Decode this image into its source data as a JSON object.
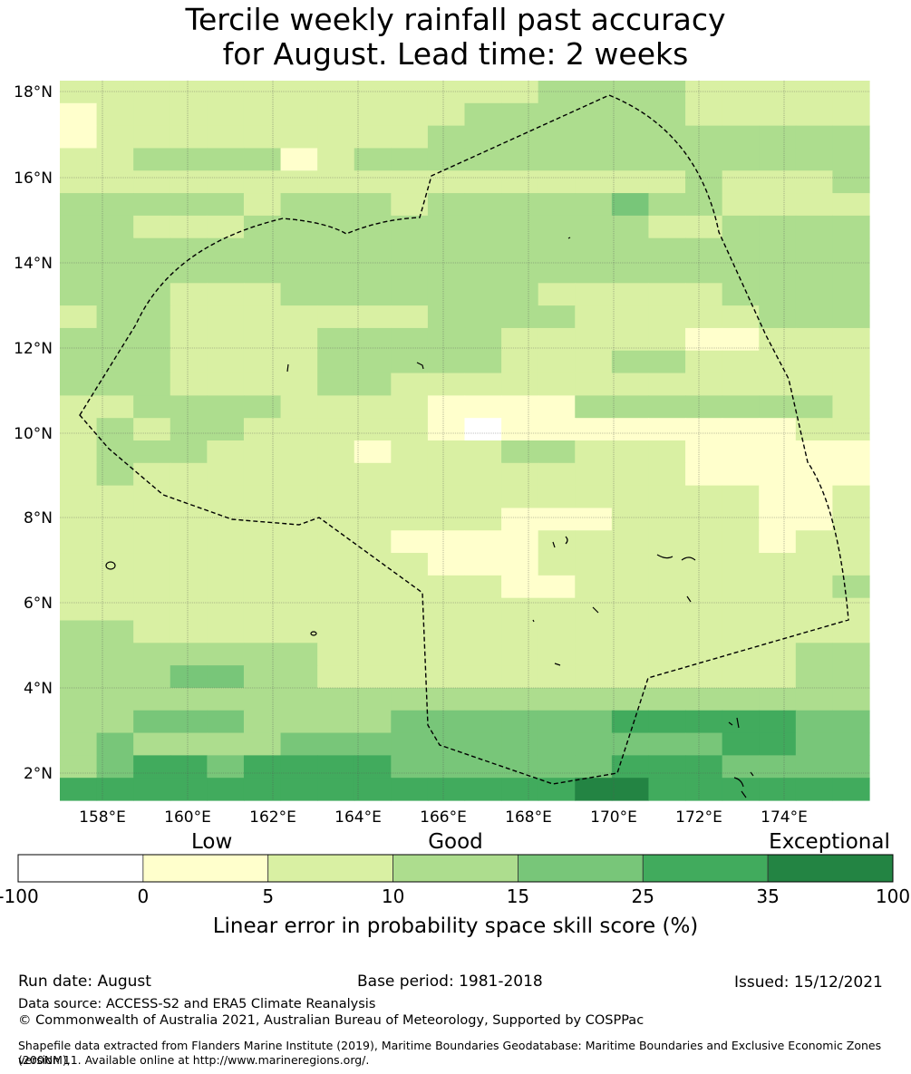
{
  "title_line1": "Tercile weekly rainfall past accuracy",
  "title_line2": "for August. Lead time: 2 weeks",
  "map": {
    "lon_ticks": [
      "158°E",
      "160°E",
      "162°E",
      "164°E",
      "166°E",
      "168°E",
      "170°E",
      "172°E",
      "174°E"
    ],
    "lat_ticks": [
      "18°N",
      "16°N",
      "14°N",
      "12°N",
      "10°N",
      "8°N",
      "6°N",
      "4°N",
      "2°N"
    ],
    "grid_rows": [
      "2222222222222333322222",
      "1222222222233333322222",
      "1222222222333333333333",
      "2233331233333333333333",
      "2222222222222222232223",
      "3333323332333334332222",
      "3322233333333333223333",
      "3333333333333333333333",
      "3333333333333333333333",
      "3332223333333222223333",
      "2332222222333322222333",
      "3332222333332222211222",
      "3332222333332223322222",
      "3332222332222222222222",
      "2233332222111133333332",
      "2323322222101111111122",
      "2333222212223322211111",
      "2322222222222222211111",
      "2222222222222222222112",
      "2222222222221112222112",
      "2222222221111222222122",
      "2222222222111222222222",
      "2222222222221122222223",
      "2222222222222222222222",
      "3322222222222222222222",
      "3333333222222222222233",
      "3334433222222222222233",
      "3333333333333333333333",
      "3344433334444445555544",
      "3433334444444444445544",
      "3455455554444445554444",
      "5555555555555566555555"
    ],
    "grid_top_lat": 18.3,
    "grid_cell_deg": 0.833,
    "grid_left_lon": 157.0
  },
  "legend": {
    "top_labels": [
      "Low",
      "Good",
      "Exceptional"
    ],
    "bins": [
      {
        "from": "-100",
        "to": "0",
        "color": "#ffffff"
      },
      {
        "from": "0",
        "to": "5",
        "color": "#ffffcc"
      },
      {
        "from": "5",
        "to": "10",
        "color": "#d9f0a3"
      },
      {
        "from": "10",
        "to": "15",
        "color": "#addd8e"
      },
      {
        "from": "15",
        "to": "25",
        "color": "#78c679"
      },
      {
        "from": "25",
        "to": "35",
        "color": "#41ab5d"
      },
      {
        "from": "35",
        "to": "100",
        "color": "#238443"
      }
    ],
    "tick_labels": [
      "-100",
      "0",
      "5",
      "10",
      "15",
      "25",
      "35",
      "100"
    ],
    "axis_label": "Linear error in probability space skill score (%)"
  },
  "footer": {
    "run_date": "Run date: August",
    "base_period": "Base period: 1981-2018",
    "issued": "Issued: 15/12/2021",
    "data_source": "Data source: ACCESS-S2 and ERA5 Climate Reanalysis",
    "copyright": "© Commonwealth of Australia 2021, Australian Bureau of Meteorology, Supported by COSPPac",
    "shapefile_line1": "Shapefile data extracted from Flanders Marine Institute (2019), Maritime Boundaries Geodatabase: Maritime Boundaries and Exclusive Economic Zones (200NM),",
    "shapefile_line2": "version 11. Available online at http://www.marineregions.org/."
  }
}
